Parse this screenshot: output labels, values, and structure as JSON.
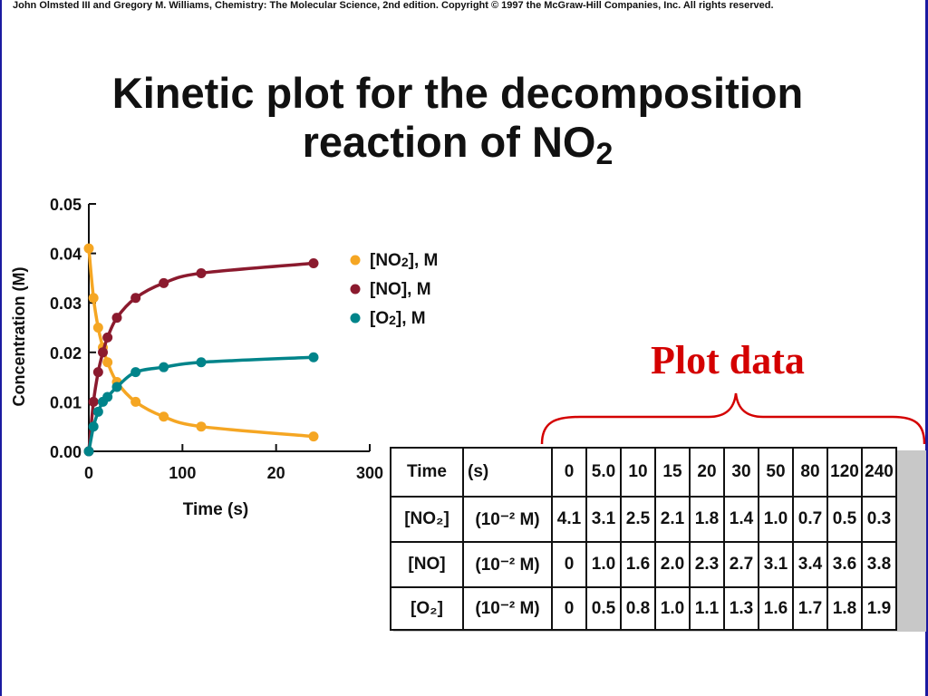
{
  "copyright": "John Olmsted III and Gregory M. Williams, Chemistry: The Molecular Science, 2nd edition. Copyright © 1997 the McGraw-Hill Companies, Inc. All rights reserved.",
  "title": {
    "line1": "Kinetic plot for the decomposition",
    "line2_main": "reaction of NO",
    "line2_sub": "2"
  },
  "annotation": {
    "text": "Plot data",
    "color": "#d40000"
  },
  "chart_data": {
    "type": "line",
    "xlabel": "Time (s)",
    "ylabel": "Concentration (M)",
    "x_ticks": [
      "0",
      "100",
      "20",
      "300"
    ],
    "y_ticks": [
      "0.00",
      "0.01",
      "0.02",
      "0.03",
      "0.04",
      "0.05"
    ],
    "xlim": [
      0,
      300
    ],
    "ylim": [
      0,
      0.05
    ],
    "x": [
      0,
      5,
      10,
      15,
      20,
      30,
      50,
      80,
      120,
      240
    ],
    "series": [
      {
        "name": "[NO₂], M",
        "color": "#f5a623",
        "values": [
          0.041,
          0.031,
          0.025,
          0.021,
          0.018,
          0.014,
          0.01,
          0.007,
          0.005,
          0.003
        ]
      },
      {
        "name": "[NO], M",
        "color": "#8b1a2e",
        "values": [
          0,
          0.01,
          0.016,
          0.02,
          0.023,
          0.027,
          0.031,
          0.034,
          0.036,
          0.038
        ]
      },
      {
        "name": "[O₂], M",
        "color": "#00848a",
        "values": [
          0,
          0.005,
          0.008,
          0.01,
          0.011,
          0.013,
          0.016,
          0.017,
          0.018,
          0.019
        ]
      }
    ],
    "legend": [
      {
        "main": "[NO",
        "sub": "2",
        "rest": "], M"
      },
      {
        "main": "[NO], M",
        "sub": "",
        "rest": ""
      },
      {
        "main": "[O",
        "sub": "2",
        "rest": "], M"
      }
    ],
    "legend_position": "right"
  },
  "table": {
    "rows": [
      {
        "species": "Time",
        "unit": "(s)",
        "values": [
          "0",
          "5.0",
          "10",
          "15",
          "20",
          "30",
          "50",
          "80",
          "120",
          "240"
        ]
      },
      {
        "species": "[NO₂]",
        "unit": "(10⁻² M)",
        "values": [
          "4.1",
          "3.1",
          "2.5",
          "2.1",
          "1.8",
          "1.4",
          "1.0",
          "0.7",
          "0.5",
          "0.3"
        ]
      },
      {
        "species": "[NO]",
        "unit": "(10⁻² M)",
        "values": [
          "0",
          "1.0",
          "1.6",
          "2.0",
          "2.3",
          "2.7",
          "3.1",
          "3.4",
          "3.6",
          "3.8"
        ]
      },
      {
        "species": "[O₂]",
        "unit": "(10⁻² M)",
        "values": [
          "0",
          "0.5",
          "0.8",
          "1.0",
          "1.1",
          "1.3",
          "1.6",
          "1.7",
          "1.8",
          "1.9"
        ]
      }
    ]
  }
}
